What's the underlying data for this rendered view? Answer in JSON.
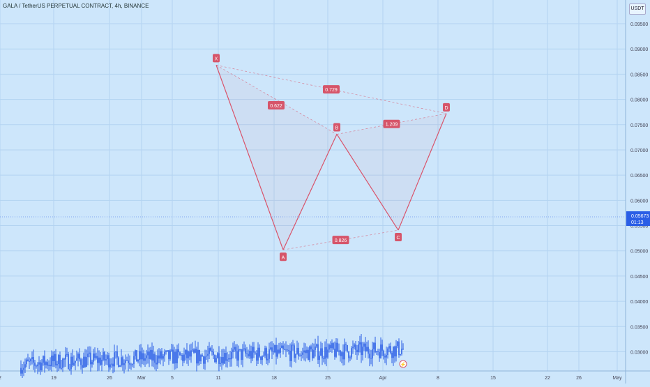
{
  "title": "GALA / TetherUS PERPETUAL CONTRACT, 4h, BINANCE",
  "currency": "USDT",
  "colors": {
    "background": "#cde6fb",
    "candles": "#2a5ee6",
    "pattern": "#d9536a",
    "label_bg": "#d6556a",
    "price_label_bg": "#2a5ee6"
  },
  "chart_data": {
    "type": "candlestick",
    "x_ticks": [
      "2",
      "19",
      "26",
      "Mar",
      "5",
      "11",
      "18",
      "25",
      "Apr",
      "8",
      "15",
      "22",
      "26",
      "May"
    ],
    "y_ticks": [
      "0.03000",
      "0.03500",
      "0.04000",
      "0.04500",
      "0.05000",
      "0.05500",
      "0.06000",
      "0.06500",
      "0.07000",
      "0.07500",
      "0.08000",
      "0.08500",
      "0.09000",
      "0.09500"
    ],
    "ylim": [
      0.0262,
      0.0997
    ],
    "current_price": "0.05673",
    "countdown": "01:13",
    "grid": true,
    "price_path": [
      [
        "2",
        0.0268
      ],
      [
        "19",
        0.0281
      ],
      [
        "26",
        0.0318
      ],
      [
        "Mar",
        0.0385
      ],
      [
        "5",
        0.0455
      ],
      [
        "5",
        0.0372
      ],
      [
        "5",
        0.0438
      ],
      [
        "11",
        0.0475
      ],
      [
        "11",
        0.0868
      ],
      [
        "18",
        0.0552
      ],
      [
        "18",
        0.0503
      ],
      [
        "25",
        0.0722
      ],
      [
        "25",
        0.0661
      ],
      [
        "Apr",
        0.0705
      ],
      [
        "Apr",
        0.0542
      ]
    ],
    "harmonic_pattern": {
      "points": [
        {
          "label": "X",
          "x": "11",
          "y": 0.0868
        },
        {
          "label": "A",
          "x": "18",
          "y": 0.0502
        },
        {
          "label": "B",
          "x": "25",
          "y": 0.0731
        },
        {
          "label": "C",
          "x": "Apr",
          "y": 0.0541
        },
        {
          "label": "D",
          "x": "8",
          "y": 0.0772
        }
      ],
      "ratios": [
        {
          "label": "0.622",
          "from": "XA",
          "to": "B"
        },
        {
          "label": "0.729",
          "from": "X",
          "to": "D"
        },
        {
          "label": "1.209",
          "from": "B",
          "to": "D"
        },
        {
          "label": "0.826",
          "from": "A",
          "to": "C"
        }
      ]
    }
  }
}
